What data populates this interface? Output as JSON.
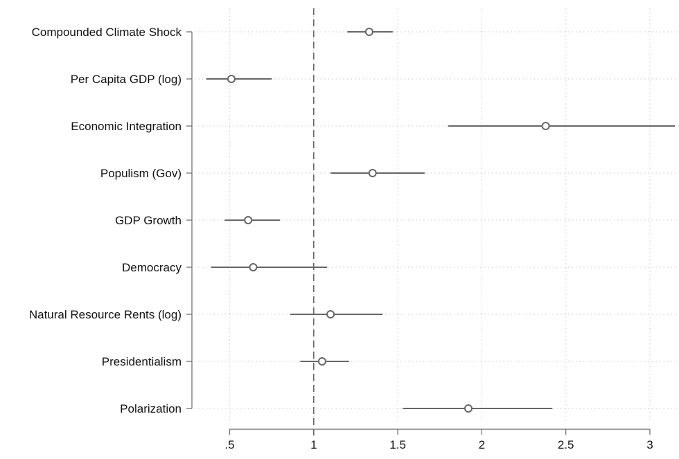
{
  "chart_data": {
    "type": "scatter",
    "subtype": "coefficient-plot",
    "title": "",
    "xlabel": "",
    "ylabel": "",
    "xlim": [
      0.25,
      3.17
    ],
    "xticks": [
      0.5,
      1,
      1.5,
      2,
      2.5,
      3
    ],
    "xtick_labels": [
      ".5",
      "1",
      "1.5",
      "2",
      "2.5",
      "3"
    ],
    "reference_line": 1,
    "grid": true,
    "legend": "none",
    "colors": {
      "marker": "#666666",
      "ci_line": "#666666",
      "reference_line": "#666666",
      "grid": "#d0d0d0",
      "axis": "#666666"
    },
    "categories": [
      "Compounded Climate Shock",
      "Per Capita GDP (log)",
      "Economic Integration",
      "Populism (Gov)",
      "GDP Growth",
      "Democracy",
      "Natural Resource Rents (log)",
      "Presidentialism",
      "Polarization"
    ],
    "estimates": [
      1.33,
      0.51,
      2.38,
      1.35,
      0.61,
      0.64,
      1.1,
      1.05,
      1.92
    ],
    "ci_low": [
      1.2,
      0.36,
      1.8,
      1.1,
      0.47,
      0.39,
      0.86,
      0.92,
      1.53
    ],
    "ci_high": [
      1.47,
      0.75,
      3.17,
      1.66,
      0.8,
      1.08,
      1.41,
      1.21,
      2.42
    ]
  }
}
